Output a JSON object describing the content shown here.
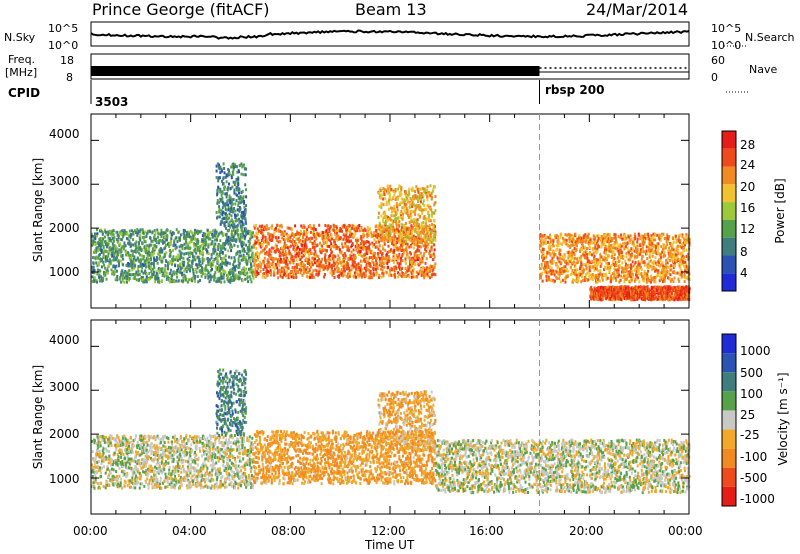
{
  "header": {
    "station": "Prince George (fitACF)",
    "beam": "Beam 13",
    "date": "24/Mar/2014"
  },
  "top_panels": {
    "nsky_label": "N.Sky",
    "nsky_ticks": [
      "10^5",
      "10^0"
    ],
    "nsearch_label": "N.Search",
    "nsearch_ticks": [
      "10^5",
      "10^0"
    ],
    "freq_label_1": "Freq.",
    "freq_label_2": "[MHz]",
    "freq_ticks": [
      "18",
      "8"
    ],
    "nave_label": "Nave",
    "nave_ticks": [
      "60",
      "0"
    ],
    "cpid_label": "CPID",
    "cpid_value_1": "3503",
    "cpid_value_2": "rbsp 200"
  },
  "chart_data": [
    {
      "type": "heatmap",
      "panel": "power",
      "ylabel": "Slant Range [km]",
      "xlabel": "Time UT",
      "x_ticks": [
        "00:00",
        "04:00",
        "08:00",
        "12:00",
        "16:00",
        "20:00",
        "00:00"
      ],
      "x_range_hours": [
        0,
        24
      ],
      "y_ticks": [
        "1000",
        "2000",
        "3000",
        "4000"
      ],
      "ylim": [
        180,
        4600
      ],
      "colorbar_label": "Power [dB]",
      "colorbar_ticks": [
        "4",
        "8",
        "12",
        "16",
        "20",
        "24",
        "28"
      ],
      "colorbar_range": [
        0,
        30
      ],
      "colors": [
        "#1f2bd6",
        "#2a53b3",
        "#3f7d7e",
        "#58a14b",
        "#9dc83a",
        "#f2c230",
        "#f08a21",
        "#ee4a1c",
        "#e61c17"
      ],
      "features": [
        {
          "t_start": 0.0,
          "t_end": 6.5,
          "range_low": 800,
          "range_high": 2000,
          "power_db": 10
        },
        {
          "t_start": 5.0,
          "t_end": 6.2,
          "range_low": 2000,
          "range_high": 3500,
          "power_db": 8
        },
        {
          "t_start": 6.5,
          "t_end": 13.8,
          "range_low": 900,
          "range_high": 2100,
          "power_db": 24
        },
        {
          "t_start": 11.5,
          "t_end": 13.8,
          "range_low": 1700,
          "range_high": 3000,
          "power_db": 20
        },
        {
          "t_start": 18.0,
          "t_end": 24.0,
          "range_low": 800,
          "range_high": 1900,
          "power_db": 22
        },
        {
          "t_start": 20.0,
          "t_end": 24.0,
          "range_low": 400,
          "range_high": 700,
          "power_db": 26
        }
      ]
    },
    {
      "type": "heatmap",
      "panel": "velocity",
      "ylabel": "Slant Range [km]",
      "xlabel": "Time UT",
      "x_ticks": [
        "00:00",
        "04:00",
        "08:00",
        "12:00",
        "16:00",
        "20:00",
        "00:00"
      ],
      "x_range_hours": [
        0,
        24
      ],
      "y_ticks": [
        "1000",
        "2000",
        "3000",
        "4000"
      ],
      "ylim": [
        180,
        4600
      ],
      "colorbar_label": "Velocity [m s⁻¹]",
      "colorbar_ticks": [
        "1000",
        "500",
        "100",
        "25",
        "-25",
        "-100",
        "-500",
        "-1000"
      ],
      "colors": [
        "#1f2bd6",
        "#2a53b3",
        "#3f7d7e",
        "#58a14b",
        "#c8c8c4",
        "#f2a92a",
        "#f08a21",
        "#ee4a1c",
        "#e61c17"
      ],
      "features": [
        {
          "t_start": 0.0,
          "t_end": 6.5,
          "range_low": 800,
          "range_high": 2000,
          "velocity": 0
        },
        {
          "t_start": 5.0,
          "t_end": 6.2,
          "range_low": 2000,
          "range_high": 3500,
          "velocity": 200
        },
        {
          "t_start": 6.5,
          "t_end": 13.8,
          "range_low": 900,
          "range_high": 2100,
          "velocity": -200
        },
        {
          "t_start": 11.5,
          "t_end": 13.8,
          "range_low": 1700,
          "range_high": 3000,
          "velocity": -150
        },
        {
          "t_start": 13.8,
          "t_end": 24.0,
          "range_low": 700,
          "range_high": 1900,
          "velocity": 0
        }
      ]
    }
  ]
}
